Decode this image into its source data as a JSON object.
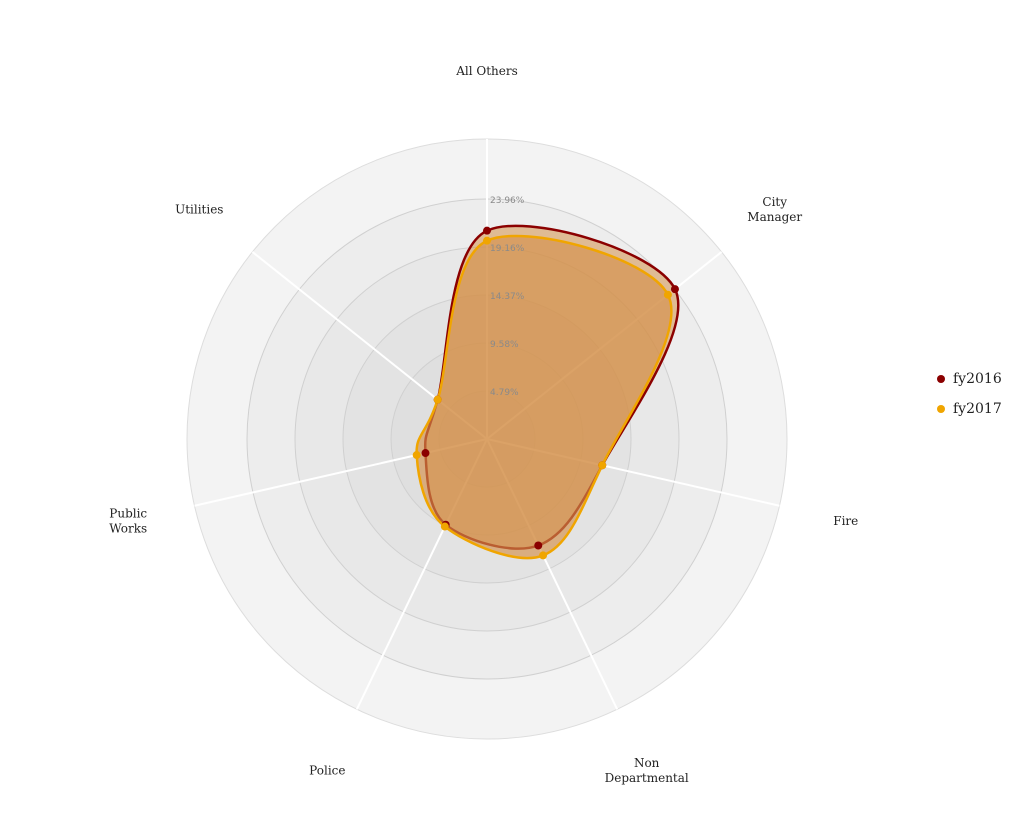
{
  "chart_data": {
    "type": "radar",
    "axes": [
      "All Others",
      "City Manager",
      "Fire",
      "Non Departmental",
      "Police",
      "Public Works",
      "Utilities"
    ],
    "axis_label_lines": [
      [
        "All Others"
      ],
      [
        "City",
        "Manager"
      ],
      [
        "Fire"
      ],
      [
        "Non",
        "Departmental"
      ],
      [
        "Police"
      ],
      [
        "Public",
        "Works"
      ],
      [
        "Utilities"
      ]
    ],
    "ticks": [
      "4.79%",
      "9.58%",
      "14.37%",
      "19.16%",
      "23.96%"
    ],
    "max": 23.96,
    "series": [
      {
        "name": "fy2016",
        "color": "#8b0000",
        "values": [
          20.8,
          24.0,
          11.8,
          11.8,
          9.5,
          6.3,
          6.3
        ]
      },
      {
        "name": "fy2017",
        "color": "#f0a500",
        "values": [
          19.8,
          23.1,
          11.8,
          12.9,
          9.7,
          7.2,
          6.3
        ]
      }
    ],
    "legend_position": "right",
    "fill_color": "#d4914b",
    "grid": true
  }
}
